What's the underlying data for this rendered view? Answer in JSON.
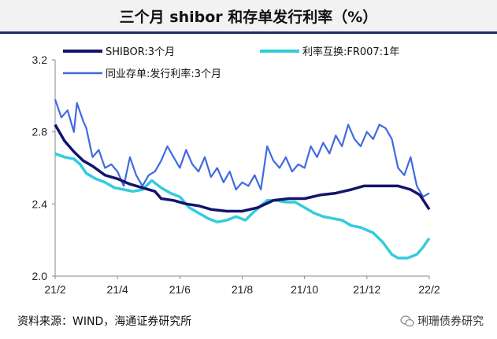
{
  "chart_data": {
    "type": "line",
    "title": "三个月 shibor 和存单发行利率（%）",
    "xlabel": "",
    "ylabel": "",
    "x_ticks": [
      "21/2",
      "21/4",
      "21/6",
      "21/8",
      "21/10",
      "21/12",
      "22/2"
    ],
    "y_ticks": [
      "2.0",
      "2.4",
      "2.8",
      "3.2"
    ],
    "ylim": [
      2.0,
      3.2
    ],
    "xlim": [
      0,
      12
    ],
    "series": [
      {
        "name": "SHIBOR:3个月",
        "color": "#14146b",
        "points": [
          [
            0,
            2.84
          ],
          [
            0.3,
            2.75
          ],
          [
            0.6,
            2.69
          ],
          [
            0.9,
            2.64
          ],
          [
            1.2,
            2.61
          ],
          [
            1.6,
            2.56
          ],
          [
            2.0,
            2.54
          ],
          [
            2.4,
            2.51
          ],
          [
            2.8,
            2.49
          ],
          [
            3.2,
            2.47
          ],
          [
            3.4,
            2.43
          ],
          [
            3.8,
            2.42
          ],
          [
            4.2,
            2.4
          ],
          [
            4.6,
            2.39
          ],
          [
            5.0,
            2.37
          ],
          [
            5.5,
            2.36
          ],
          [
            6.0,
            2.36
          ],
          [
            6.5,
            2.38
          ],
          [
            7.0,
            2.42
          ],
          [
            7.5,
            2.43
          ],
          [
            8.0,
            2.43
          ],
          [
            8.5,
            2.45
          ],
          [
            9.0,
            2.46
          ],
          [
            9.5,
            2.48
          ],
          [
            9.9,
            2.5
          ],
          [
            10.5,
            2.5
          ],
          [
            11.0,
            2.5
          ],
          [
            11.4,
            2.48
          ],
          [
            11.7,
            2.45
          ],
          [
            12.0,
            2.37
          ]
        ]
      },
      {
        "name": "利率互换:FR007:1年",
        "color": "#33ccdd",
        "points": [
          [
            0,
            2.68
          ],
          [
            0.3,
            2.66
          ],
          [
            0.6,
            2.65
          ],
          [
            0.8,
            2.62
          ],
          [
            1.0,
            2.57
          ],
          [
            1.3,
            2.54
          ],
          [
            1.6,
            2.52
          ],
          [
            1.9,
            2.49
          ],
          [
            2.2,
            2.48
          ],
          [
            2.5,
            2.47
          ],
          [
            2.8,
            2.48
          ],
          [
            3.1,
            2.53
          ],
          [
            3.4,
            2.49
          ],
          [
            3.7,
            2.46
          ],
          [
            4.0,
            2.44
          ],
          [
            4.3,
            2.38
          ],
          [
            4.6,
            2.35
          ],
          [
            4.9,
            2.32
          ],
          [
            5.2,
            2.3
          ],
          [
            5.5,
            2.31
          ],
          [
            5.8,
            2.33
          ],
          [
            6.1,
            2.31
          ],
          [
            6.4,
            2.36
          ],
          [
            6.8,
            2.42
          ],
          [
            7.1,
            2.42
          ],
          [
            7.4,
            2.41
          ],
          [
            7.7,
            2.41
          ],
          [
            8.0,
            2.38
          ],
          [
            8.3,
            2.35
          ],
          [
            8.6,
            2.33
          ],
          [
            8.9,
            2.32
          ],
          [
            9.2,
            2.31
          ],
          [
            9.5,
            2.28
          ],
          [
            9.8,
            2.27
          ],
          [
            10.2,
            2.24
          ],
          [
            10.5,
            2.19
          ],
          [
            10.8,
            2.12
          ],
          [
            11.0,
            2.1
          ],
          [
            11.3,
            2.1
          ],
          [
            11.6,
            2.12
          ],
          [
            11.8,
            2.16
          ],
          [
            12.0,
            2.21
          ]
        ]
      },
      {
        "name": "同业存单:发行利率:3个月",
        "color": "#4169e1",
        "points": [
          [
            0,
            2.98
          ],
          [
            0.2,
            2.88
          ],
          [
            0.4,
            2.92
          ],
          [
            0.6,
            2.8
          ],
          [
            0.7,
            2.96
          ],
          [
            0.9,
            2.86
          ],
          [
            1.0,
            2.82
          ],
          [
            1.2,
            2.66
          ],
          [
            1.4,
            2.7
          ],
          [
            1.6,
            2.6
          ],
          [
            1.8,
            2.62
          ],
          [
            2.0,
            2.58
          ],
          [
            2.2,
            2.5
          ],
          [
            2.4,
            2.66
          ],
          [
            2.6,
            2.56
          ],
          [
            2.8,
            2.5
          ],
          [
            3.0,
            2.56
          ],
          [
            3.2,
            2.58
          ],
          [
            3.4,
            2.64
          ],
          [
            3.6,
            2.72
          ],
          [
            3.8,
            2.66
          ],
          [
            4.0,
            2.6
          ],
          [
            4.2,
            2.7
          ],
          [
            4.4,
            2.62
          ],
          [
            4.6,
            2.58
          ],
          [
            4.8,
            2.66
          ],
          [
            5.0,
            2.55
          ],
          [
            5.2,
            2.6
          ],
          [
            5.4,
            2.52
          ],
          [
            5.6,
            2.58
          ],
          [
            5.8,
            2.48
          ],
          [
            6.0,
            2.52
          ],
          [
            6.2,
            2.5
          ],
          [
            6.4,
            2.56
          ],
          [
            6.6,
            2.48
          ],
          [
            6.8,
            2.72
          ],
          [
            7.0,
            2.64
          ],
          [
            7.2,
            2.6
          ],
          [
            7.4,
            2.66
          ],
          [
            7.6,
            2.58
          ],
          [
            7.8,
            2.62
          ],
          [
            8.0,
            2.6
          ],
          [
            8.2,
            2.72
          ],
          [
            8.4,
            2.66
          ],
          [
            8.6,
            2.74
          ],
          [
            8.8,
            2.68
          ],
          [
            9.0,
            2.78
          ],
          [
            9.2,
            2.72
          ],
          [
            9.4,
            2.84
          ],
          [
            9.6,
            2.76
          ],
          [
            9.8,
            2.72
          ],
          [
            10.0,
            2.8
          ],
          [
            10.2,
            2.76
          ],
          [
            10.4,
            2.84
          ],
          [
            10.6,
            2.82
          ],
          [
            10.8,
            2.76
          ],
          [
            11.0,
            2.6
          ],
          [
            11.2,
            2.56
          ],
          [
            11.4,
            2.66
          ],
          [
            11.6,
            2.5
          ],
          [
            11.8,
            2.44
          ],
          [
            12.0,
            2.46
          ]
        ]
      }
    ]
  },
  "source_text": "资料来源：WIND，海通证券研究所",
  "watermark_text": "琍珊债券研究"
}
